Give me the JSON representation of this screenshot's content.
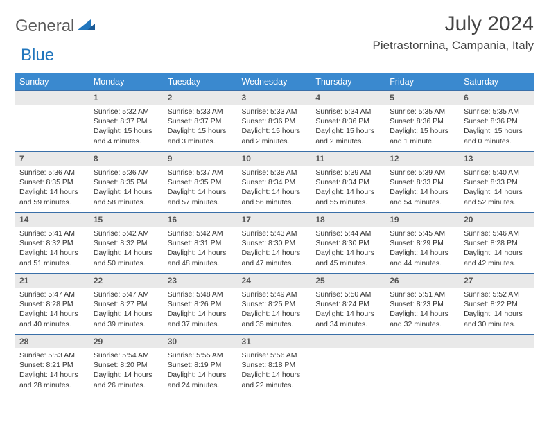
{
  "brand": {
    "general": "General",
    "blue": "Blue"
  },
  "title": "July 2024",
  "location": "Pietrastornina, Campania, Italy",
  "colors": {
    "header_bg": "#3a89cf",
    "header_text": "#ffffff",
    "daynum_bg": "#e9e9e9",
    "border": "#3a6fa8",
    "brand_gray": "#5a5a5a",
    "brand_blue": "#2176bd"
  },
  "weekdays": [
    "Sunday",
    "Monday",
    "Tuesday",
    "Wednesday",
    "Thursday",
    "Friday",
    "Saturday"
  ],
  "weeks": [
    [
      null,
      {
        "n": "1",
        "sr": "5:32 AM",
        "ss": "8:37 PM",
        "dl": "15 hours and 4 minutes."
      },
      {
        "n": "2",
        "sr": "5:33 AM",
        "ss": "8:37 PM",
        "dl": "15 hours and 3 minutes."
      },
      {
        "n": "3",
        "sr": "5:33 AM",
        "ss": "8:36 PM",
        "dl": "15 hours and 2 minutes."
      },
      {
        "n": "4",
        "sr": "5:34 AM",
        "ss": "8:36 PM",
        "dl": "15 hours and 2 minutes."
      },
      {
        "n": "5",
        "sr": "5:35 AM",
        "ss": "8:36 PM",
        "dl": "15 hours and 1 minute."
      },
      {
        "n": "6",
        "sr": "5:35 AM",
        "ss": "8:36 PM",
        "dl": "15 hours and 0 minutes."
      }
    ],
    [
      {
        "n": "7",
        "sr": "5:36 AM",
        "ss": "8:35 PM",
        "dl": "14 hours and 59 minutes."
      },
      {
        "n": "8",
        "sr": "5:36 AM",
        "ss": "8:35 PM",
        "dl": "14 hours and 58 minutes."
      },
      {
        "n": "9",
        "sr": "5:37 AM",
        "ss": "8:35 PM",
        "dl": "14 hours and 57 minutes."
      },
      {
        "n": "10",
        "sr": "5:38 AM",
        "ss": "8:34 PM",
        "dl": "14 hours and 56 minutes."
      },
      {
        "n": "11",
        "sr": "5:39 AM",
        "ss": "8:34 PM",
        "dl": "14 hours and 55 minutes."
      },
      {
        "n": "12",
        "sr": "5:39 AM",
        "ss": "8:33 PM",
        "dl": "14 hours and 54 minutes."
      },
      {
        "n": "13",
        "sr": "5:40 AM",
        "ss": "8:33 PM",
        "dl": "14 hours and 52 minutes."
      }
    ],
    [
      {
        "n": "14",
        "sr": "5:41 AM",
        "ss": "8:32 PM",
        "dl": "14 hours and 51 minutes."
      },
      {
        "n": "15",
        "sr": "5:42 AM",
        "ss": "8:32 PM",
        "dl": "14 hours and 50 minutes."
      },
      {
        "n": "16",
        "sr": "5:42 AM",
        "ss": "8:31 PM",
        "dl": "14 hours and 48 minutes."
      },
      {
        "n": "17",
        "sr": "5:43 AM",
        "ss": "8:30 PM",
        "dl": "14 hours and 47 minutes."
      },
      {
        "n": "18",
        "sr": "5:44 AM",
        "ss": "8:30 PM",
        "dl": "14 hours and 45 minutes."
      },
      {
        "n": "19",
        "sr": "5:45 AM",
        "ss": "8:29 PM",
        "dl": "14 hours and 44 minutes."
      },
      {
        "n": "20",
        "sr": "5:46 AM",
        "ss": "8:28 PM",
        "dl": "14 hours and 42 minutes."
      }
    ],
    [
      {
        "n": "21",
        "sr": "5:47 AM",
        "ss": "8:28 PM",
        "dl": "14 hours and 40 minutes."
      },
      {
        "n": "22",
        "sr": "5:47 AM",
        "ss": "8:27 PM",
        "dl": "14 hours and 39 minutes."
      },
      {
        "n": "23",
        "sr": "5:48 AM",
        "ss": "8:26 PM",
        "dl": "14 hours and 37 minutes."
      },
      {
        "n": "24",
        "sr": "5:49 AM",
        "ss": "8:25 PM",
        "dl": "14 hours and 35 minutes."
      },
      {
        "n": "25",
        "sr": "5:50 AM",
        "ss": "8:24 PM",
        "dl": "14 hours and 34 minutes."
      },
      {
        "n": "26",
        "sr": "5:51 AM",
        "ss": "8:23 PM",
        "dl": "14 hours and 32 minutes."
      },
      {
        "n": "27",
        "sr": "5:52 AM",
        "ss": "8:22 PM",
        "dl": "14 hours and 30 minutes."
      }
    ],
    [
      {
        "n": "28",
        "sr": "5:53 AM",
        "ss": "8:21 PM",
        "dl": "14 hours and 28 minutes."
      },
      {
        "n": "29",
        "sr": "5:54 AM",
        "ss": "8:20 PM",
        "dl": "14 hours and 26 minutes."
      },
      {
        "n": "30",
        "sr": "5:55 AM",
        "ss": "8:19 PM",
        "dl": "14 hours and 24 minutes."
      },
      {
        "n": "31",
        "sr": "5:56 AM",
        "ss": "8:18 PM",
        "dl": "14 hours and 22 minutes."
      },
      null,
      null,
      null
    ]
  ],
  "labels": {
    "sunrise": "Sunrise:",
    "sunset": "Sunset:",
    "daylight": "Daylight:"
  }
}
